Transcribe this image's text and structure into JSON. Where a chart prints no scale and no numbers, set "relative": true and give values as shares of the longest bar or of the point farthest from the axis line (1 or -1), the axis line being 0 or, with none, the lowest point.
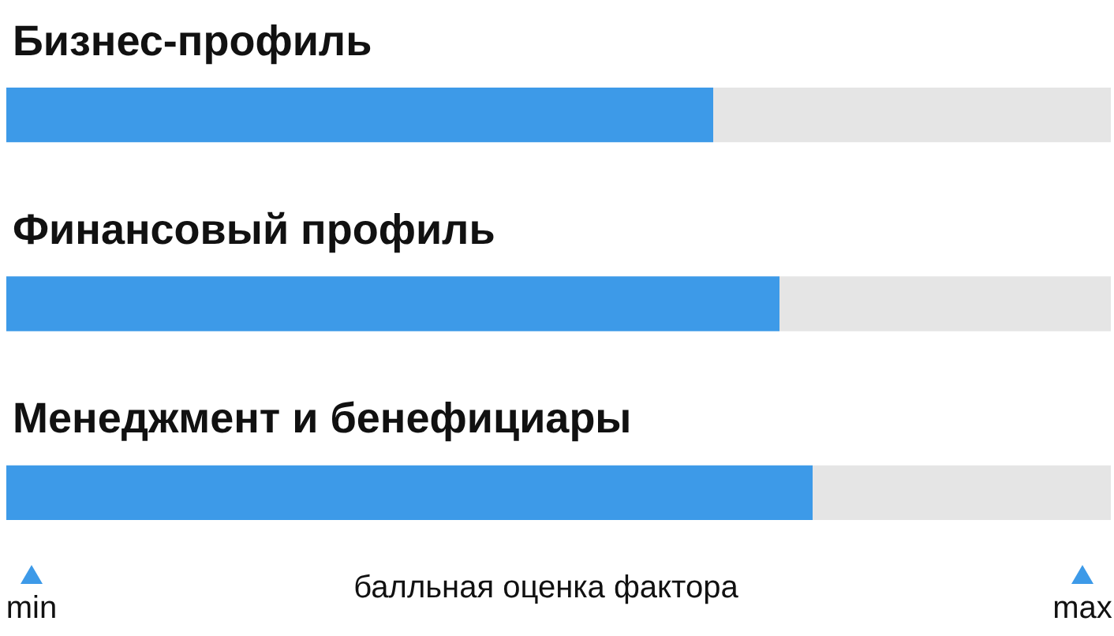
{
  "chart_data": {
    "type": "bar",
    "orientation": "horizontal",
    "stacked": true,
    "relative": true,
    "categories": [
      "Бизнес-профиль",
      "Финансовый профиль",
      "Менеджмент и бенефициары"
    ],
    "series": [
      {
        "color": "#3d9ae8",
        "values": [
          0.64,
          0.7,
          0.73
        ]
      },
      {
        "color": "#e5e5e5",
        "values": [
          0.36,
          0.3,
          0.27
        ]
      }
    ],
    "xlabel": "балльная оценка фактора",
    "annotations": [
      "min",
      "max"
    ],
    "legend": false
  }
}
